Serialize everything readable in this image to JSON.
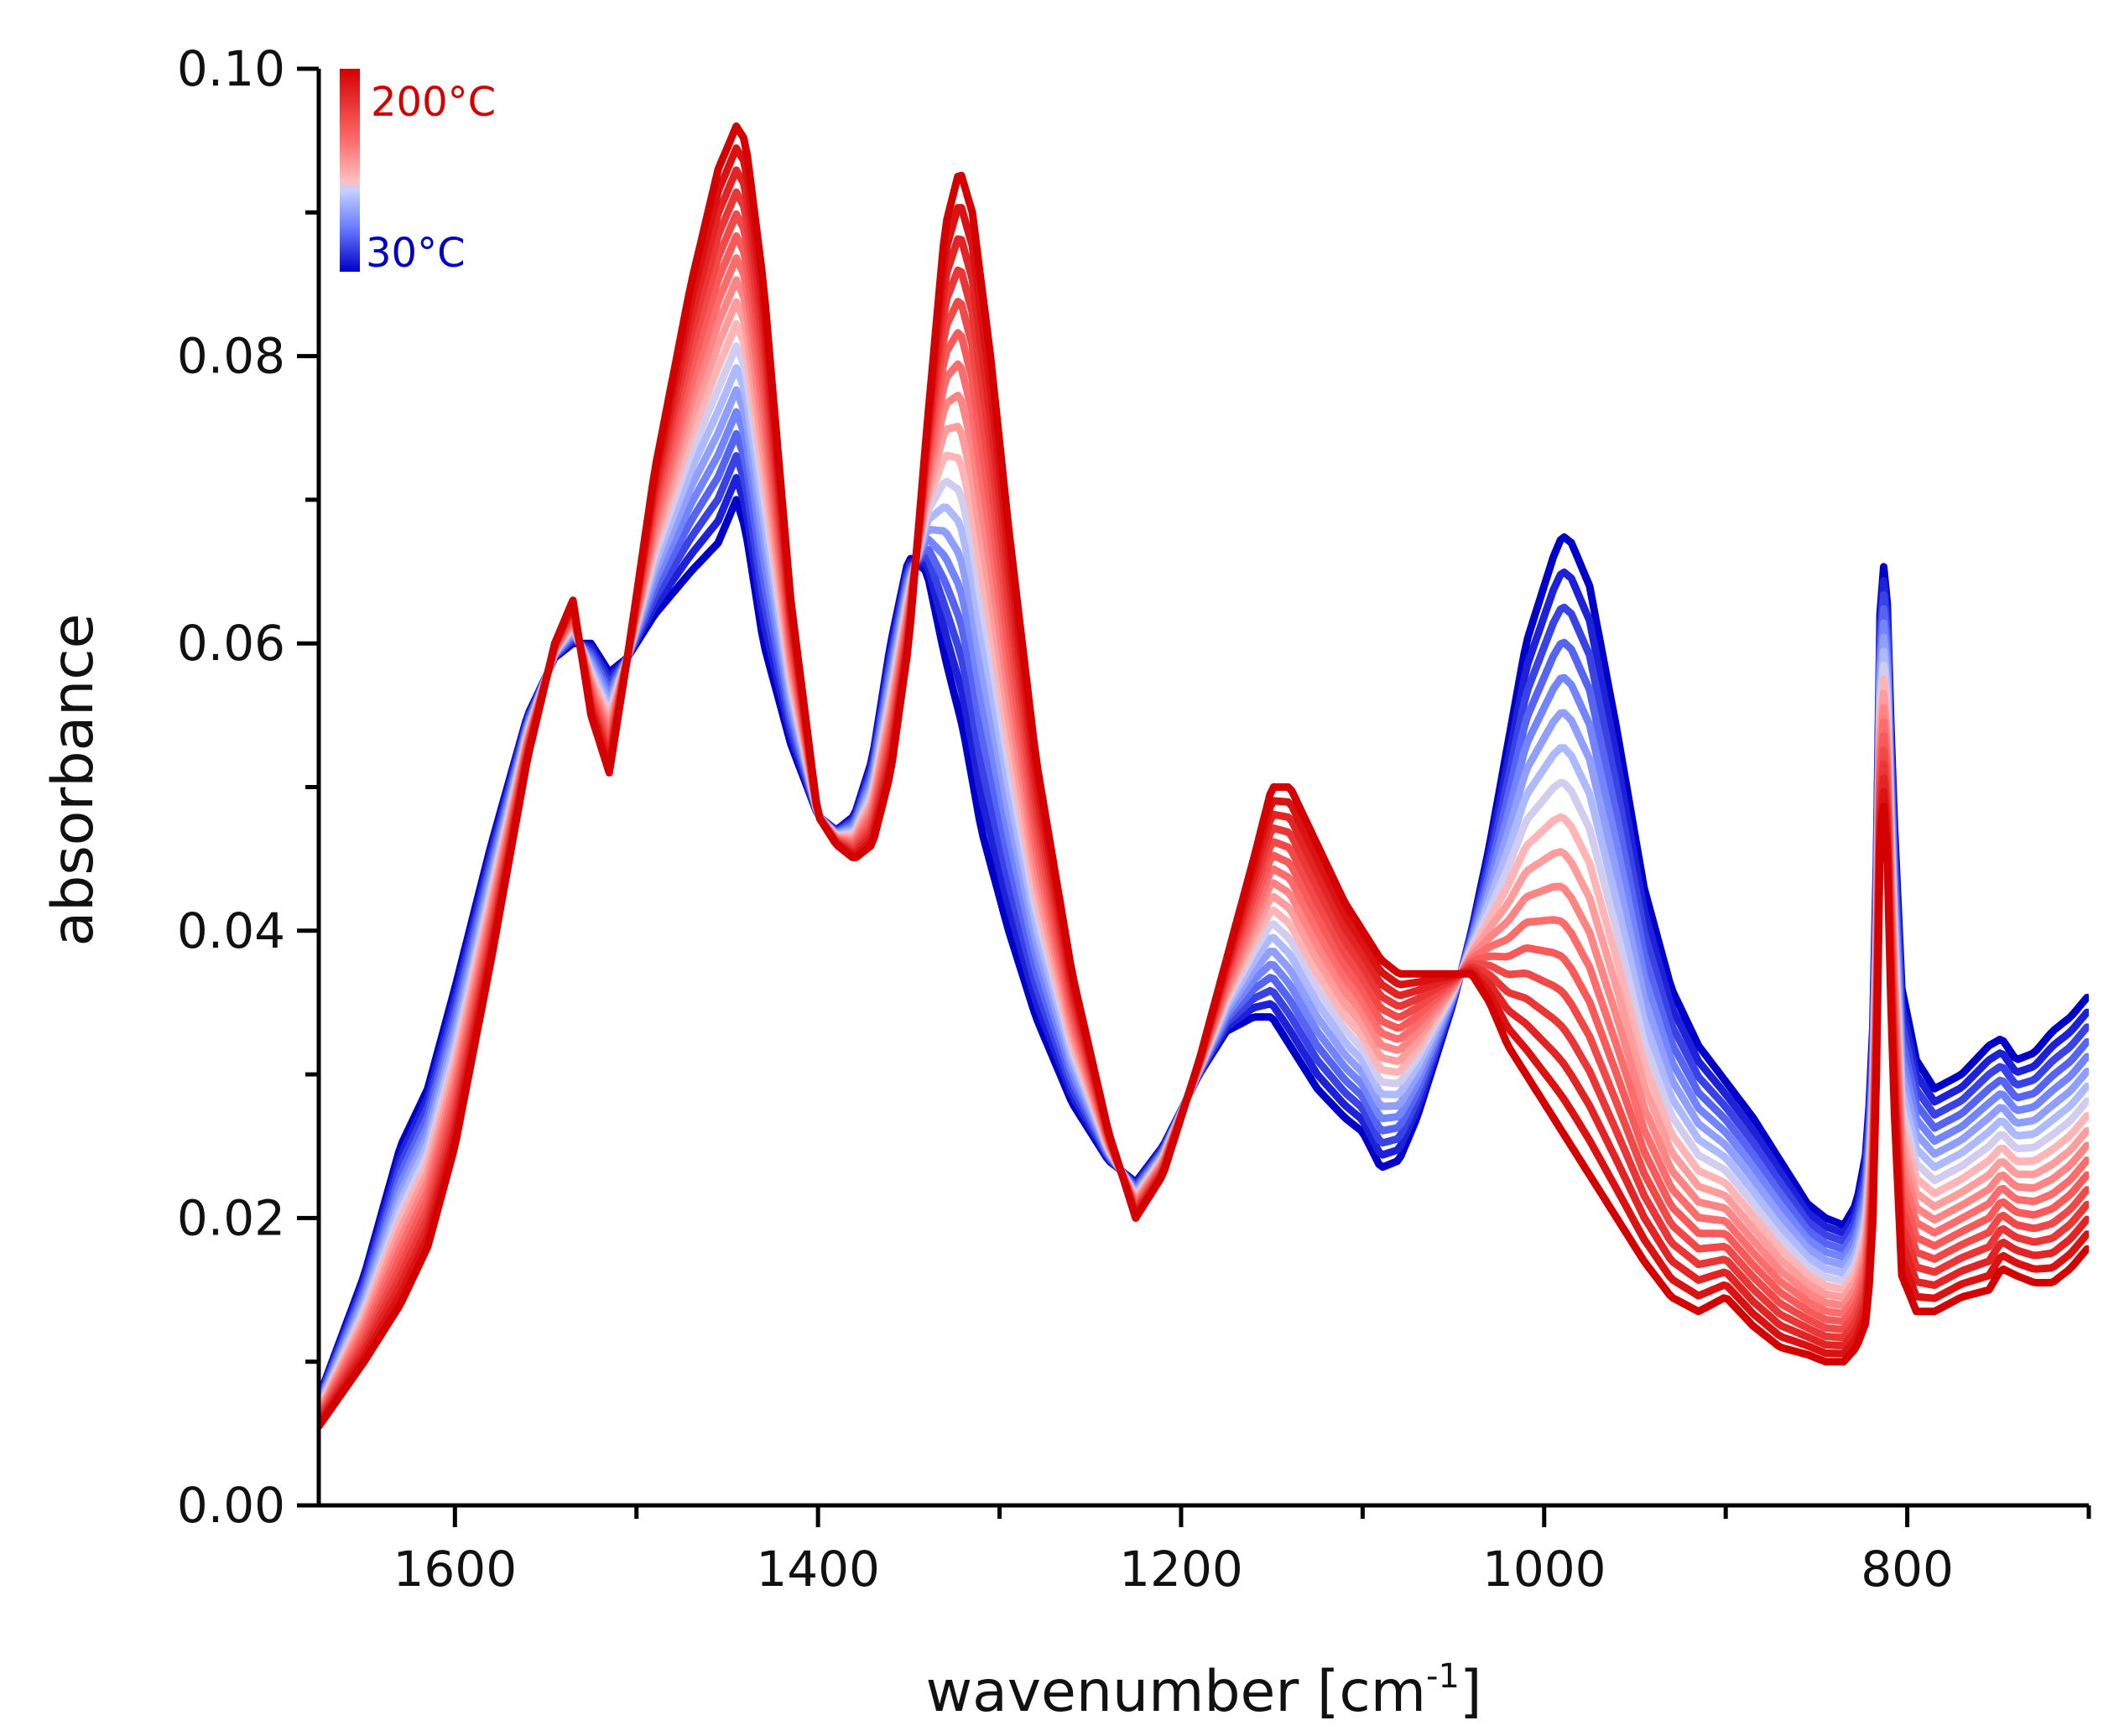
{
  "chart_data": {
    "type": "line",
    "title": "",
    "xlabel": "wavenumber [cm",
    "xlabel_superscript": "-1",
    "xlabel_suffix": "]",
    "ylabel": "absorbance",
    "xlim": [
      1675,
      700
    ],
    "ylim": [
      0.0,
      0.1
    ],
    "x_ticks": [
      1600,
      1400,
      1200,
      1000,
      800
    ],
    "x_tick_labels": [
      "1600",
      "1400",
      "1200",
      "1000",
      "800"
    ],
    "x_minor_ticks": [
      1500,
      1300,
      1100,
      900,
      700
    ],
    "y_ticks": [
      0.0,
      0.02,
      0.04,
      0.06,
      0.08,
      0.1
    ],
    "y_tick_labels": [
      "0.00",
      "0.02",
      "0.04",
      "0.06",
      "0.08",
      "0.10"
    ],
    "y_minor_ticks": [
      0.01,
      0.03,
      0.05,
      0.07,
      0.09
    ],
    "legend": {
      "type": "colorbar",
      "placement": "top-left",
      "high_label": "200°C",
      "low_label": "30°C",
      "high_color": "#d40000",
      "low_color": "#0000c8"
    },
    "temperature_range_c": [
      30,
      200
    ],
    "series_count": 18,
    "cold_spectrum_30C": {
      "name": "30°C",
      "x": [
        1675,
        1650,
        1630,
        1615,
        1600,
        1580,
        1560,
        1545,
        1535,
        1525,
        1515,
        1505,
        1490,
        1470,
        1455,
        1445,
        1440,
        1430,
        1415,
        1400,
        1390,
        1380,
        1370,
        1360,
        1350,
        1340,
        1330,
        1320,
        1310,
        1295,
        1280,
        1260,
        1240,
        1225,
        1210,
        1190,
        1175,
        1160,
        1150,
        1140,
        1125,
        1110,
        1100,
        1090,
        1080,
        1070,
        1060,
        1050,
        1040,
        1030,
        1020,
        1010,
        1000,
        995,
        990,
        985,
        975,
        960,
        945,
        930,
        915,
        900,
        885,
        870,
        855,
        845,
        835,
        828,
        822,
        818,
        815,
        812,
        808,
        803,
        795,
        785,
        770,
        755,
        748,
        740,
        730,
        720,
        710,
        700
      ],
      "y": [
        0.0075,
        0.016,
        0.025,
        0.029,
        0.036,
        0.046,
        0.055,
        0.059,
        0.06,
        0.06,
        0.058,
        0.059,
        0.062,
        0.065,
        0.067,
        0.07,
        0.068,
        0.06,
        0.053,
        0.048,
        0.047,
        0.048,
        0.052,
        0.06,
        0.066,
        0.065,
        0.059,
        0.054,
        0.047,
        0.04,
        0.034,
        0.028,
        0.024,
        0.0225,
        0.025,
        0.03,
        0.033,
        0.034,
        0.034,
        0.032,
        0.029,
        0.027,
        0.026,
        0.0235,
        0.024,
        0.027,
        0.031,
        0.035,
        0.04,
        0.046,
        0.053,
        0.06,
        0.064,
        0.066,
        0.0675,
        0.067,
        0.064,
        0.054,
        0.043,
        0.036,
        0.032,
        0.0295,
        0.027,
        0.024,
        0.021,
        0.02,
        0.0195,
        0.021,
        0.025,
        0.036,
        0.062,
        0.067,
        0.05,
        0.036,
        0.031,
        0.029,
        0.03,
        0.032,
        0.0325,
        0.031,
        0.0315,
        0.033,
        0.034,
        0.0355
      ]
    },
    "hot_spectrum_200C": {
      "name": "200°C",
      "x": [
        1675,
        1650,
        1630,
        1615,
        1600,
        1580,
        1560,
        1545,
        1535,
        1525,
        1515,
        1505,
        1490,
        1470,
        1455,
        1445,
        1440,
        1430,
        1415,
        1400,
        1390,
        1380,
        1370,
        1360,
        1350,
        1340,
        1330,
        1322,
        1315,
        1305,
        1295,
        1280,
        1260,
        1240,
        1225,
        1210,
        1190,
        1175,
        1160,
        1150,
        1140,
        1125,
        1110,
        1100,
        1090,
        1080,
        1070,
        1060,
        1050,
        1040,
        1030,
        1020,
        1010,
        1000,
        990,
        975,
        960,
        945,
        930,
        915,
        900,
        885,
        870,
        855,
        845,
        835,
        828,
        822,
        818,
        815,
        812,
        808,
        803,
        795,
        785,
        770,
        755,
        748,
        740,
        730,
        720,
        710,
        700
      ],
      "y": [
        0.0055,
        0.01,
        0.014,
        0.018,
        0.025,
        0.038,
        0.052,
        0.06,
        0.063,
        0.055,
        0.051,
        0.059,
        0.072,
        0.085,
        0.093,
        0.096,
        0.095,
        0.085,
        0.063,
        0.048,
        0.046,
        0.045,
        0.046,
        0.051,
        0.06,
        0.075,
        0.089,
        0.093,
        0.09,
        0.08,
        0.068,
        0.052,
        0.037,
        0.026,
        0.02,
        0.023,
        0.031,
        0.038,
        0.045,
        0.05,
        0.05,
        0.046,
        0.042,
        0.04,
        0.038,
        0.037,
        0.037,
        0.037,
        0.037,
        0.037,
        0.035,
        0.032,
        0.03,
        0.028,
        0.026,
        0.023,
        0.02,
        0.017,
        0.0145,
        0.0135,
        0.0145,
        0.0125,
        0.011,
        0.0105,
        0.01,
        0.01,
        0.011,
        0.013,
        0.022,
        0.046,
        0.05,
        0.03,
        0.016,
        0.0135,
        0.0135,
        0.0145,
        0.015,
        0.0165,
        0.016,
        0.0155,
        0.0155,
        0.0165,
        0.018
      ]
    }
  }
}
